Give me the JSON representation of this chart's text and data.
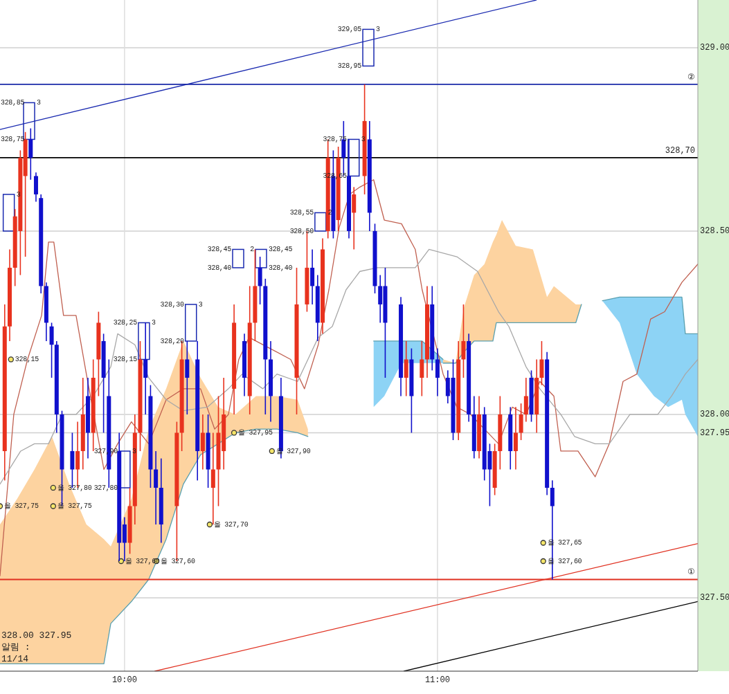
{
  "chart_data": {
    "type": "candlestick",
    "xlim": [
      9.602,
      11.832
    ],
    "ylim": [
      327.3,
      329.13
    ],
    "xticks": [
      {
        "value": 10,
        "label": "10:00"
      },
      {
        "value": 11,
        "label": "11:00"
      }
    ],
    "yticks": [
      {
        "value": 327.5,
        "label": "327.50"
      },
      {
        "value": 327.95,
        "label": "327.95"
      },
      {
        "value": 328,
        "label": "328.00"
      },
      {
        "value": 328.5,
        "label": "328.50"
      },
      {
        "value": 329,
        "label": "329.00"
      }
    ],
    "grid": true,
    "series": [
      {
        "type": "line",
        "color": "#5aa0b0",
        "x": [
          9.602,
          9.657,
          9.712,
          9.768,
          9.823,
          9.878,
          9.934,
          9.956,
          10.022,
          10.077,
          10.133,
          10.188,
          10.243,
          10.299,
          10.354,
          10.42,
          10.487,
          10.553,
          10.586
        ],
        "values": [
          327.32,
          327.32,
          327.32,
          327.32,
          327.32,
          327.32,
          327.32,
          327.43,
          327.49,
          327.55,
          327.66,
          327.81,
          327.89,
          327.92,
          327.95,
          327.96,
          327.96,
          327.95,
          327.94
        ],
        "lower": [
          327.32,
          327.32,
          327.32,
          327.32,
          327.32,
          327.32,
          327.32,
          327.43,
          327.49,
          327.55,
          327.66,
          327.81,
          327.89,
          327.92,
          327.95,
          327.96,
          327.96,
          327.95,
          327.94
        ],
        "upper": [
          327.7,
          327.77,
          327.85,
          327.94,
          327.81,
          327.7,
          327.66,
          327.64,
          327.77,
          327.96,
          328.07,
          328.2,
          328.1,
          328.02,
          328.0,
          328.05,
          328.05,
          328.04,
          327.96
        ]
      },
      {
        "type": "line",
        "color": "#5aa0b0",
        "x": [
          10.796,
          10.83,
          10.885,
          10.951,
          11.018
        ],
        "values": [
          328.2,
          328.2,
          328.2,
          328.2,
          328.15
        ],
        "lower": [
          328.02,
          328.05,
          328.14,
          328.14,
          328.14
        ],
        "upper": [
          328.2,
          328.2,
          328.2,
          328.2,
          328.15
        ]
      },
      {
        "type": "line",
        "color": "#5aa0b0",
        "x": [
          11.018,
          11.058,
          11.084,
          11.117,
          11.15,
          11.177,
          11.188,
          11.206,
          11.25,
          11.305,
          11.35,
          11.372,
          11.442,
          11.46
        ],
        "values": [
          328.14,
          328.14,
          328.17,
          328.2,
          328.2,
          328.2,
          328.25,
          328.25,
          328.25,
          328.25,
          328.25,
          328.25,
          328.25,
          328.3
        ],
        "lower": [
          328.14,
          328.14,
          328.17,
          328.2,
          328.2,
          328.2,
          328.25,
          328.25,
          328.25,
          328.25,
          328.25,
          328.25,
          328.25,
          328.3
        ],
        "upper": [
          328.15,
          328.14,
          328.29,
          328.38,
          328.41,
          328.47,
          328.49,
          328.53,
          328.46,
          328.45,
          328.32,
          328.35,
          328.3,
          328.3
        ]
      },
      {
        "type": "line",
        "color": "#5aa0b0",
        "x": [
          11.527,
          11.582,
          11.637,
          11.692,
          11.737,
          11.781,
          11.792,
          11.832
        ],
        "values": [
          328.31,
          328.32,
          328.32,
          328.32,
          328.32,
          328.32,
          328.22,
          328.22
        ],
        "lower": [
          328.31,
          328.25,
          328.11,
          328.05,
          328.02,
          328.04,
          328.0,
          327.94
        ],
        "upper": [
          328.31,
          328.32,
          328.32,
          328.32,
          328.32,
          328.32,
          328.22,
          328.22
        ]
      },
      {
        "type": "line",
        "color": "#c06050",
        "x": [
          9.602,
          9.646,
          9.69,
          9.735,
          9.757,
          9.774,
          9.805,
          9.845,
          9.878,
          9.934,
          9.978,
          10.022,
          10.077,
          10.133,
          10.188,
          10.243,
          10.288,
          10.332,
          10.365,
          10.398,
          10.465,
          10.531,
          10.575,
          10.619,
          10.653,
          10.686,
          10.719,
          10.752,
          10.796,
          10.83,
          10.885,
          10.929,
          10.951,
          11.018,
          11.062,
          11.106,
          11.15,
          11.195,
          11.239,
          11.283,
          11.327,
          11.372,
          11.394,
          11.449,
          11.504,
          11.549,
          11.593,
          11.637,
          11.681,
          11.726,
          11.781,
          11.832
        ],
        "values": [
          327.56,
          328.0,
          328.15,
          328.27,
          328.47,
          328.47,
          328.27,
          328.27,
          328.11,
          327.85,
          327.92,
          327.98,
          327.92,
          328.04,
          328.07,
          328.07,
          327.96,
          328.0,
          328.15,
          328.21,
          328.18,
          328.15,
          328.07,
          328.19,
          328.34,
          328.51,
          328.6,
          328.62,
          328.64,
          328.53,
          328.52,
          328.45,
          328.34,
          328.11,
          328.02,
          328.0,
          327.96,
          327.92,
          328.02,
          328.0,
          328.09,
          328.05,
          327.9,
          327.9,
          327.83,
          327.92,
          328.09,
          328.11,
          328.26,
          328.28,
          328.36,
          328.41
        ]
      },
      {
        "type": "line",
        "color": "#a8a8a8",
        "x": [
          9.602,
          9.668,
          9.712,
          9.757,
          9.801,
          9.845,
          9.9,
          9.956,
          9.978,
          10.033,
          10.077,
          10.133,
          10.188,
          10.265,
          10.332,
          10.376,
          10.442,
          10.487,
          10.553,
          10.619,
          10.664,
          10.708,
          10.752,
          10.808,
          10.929,
          10.973,
          11.062,
          11.128,
          11.195,
          11.228,
          11.283,
          11.327,
          11.394,
          11.438,
          11.504,
          11.549,
          11.615,
          11.704,
          11.748,
          11.792,
          11.832
        ],
        "values": [
          327.81,
          327.9,
          327.92,
          327.92,
          328.0,
          328.0,
          328.05,
          328.13,
          328.22,
          328.19,
          328.1,
          328.04,
          328.01,
          328.02,
          328.07,
          328.11,
          328.07,
          328.11,
          328.09,
          328.21,
          328.24,
          328.34,
          328.39,
          328.4,
          328.4,
          328.45,
          328.43,
          328.39,
          328.28,
          328.24,
          328.13,
          328.07,
          328.0,
          327.94,
          327.92,
          327.92,
          328.0,
          328.0,
          328.05,
          328.11,
          328.15
        ]
      },
      {
        "type": "line",
        "color": "#1a2ab0",
        "x": [
          9.602,
          11.316
        ],
        "values": [
          328.777,
          329.13
        ]
      },
      {
        "type": "line",
        "color": "#e03020",
        "x": [
          10.097,
          11.832
        ],
        "values": [
          327.3,
          327.648
        ]
      },
      {
        "type": "line",
        "color": "#000000",
        "x": [
          10.893,
          11.832
        ],
        "values": [
          327.3,
          327.49
        ]
      },
      {
        "type": "bar",
        "color": "#1a2ab0",
        "x": [
          9.63,
          9.695,
          10.0,
          10.062,
          10.212,
          10.363,
          10.436,
          10.626,
          10.732,
          10.779
        ],
        "base": [
          328.5,
          328.75,
          327.8,
          328.15,
          328.2,
          328.4,
          328.4,
          328.5,
          328.65,
          328.95
        ],
        "values": [
          0.1,
          0.1,
          0.1,
          0.1,
          0.1,
          0.05,
          0.05,
          0.05,
          0.1,
          0.1
        ]
      },
      {
        "type": "scatter",
        "color": "#f5e66a",
        "marker": "circle",
        "x": [
          9.602,
          9.637,
          9.772,
          9.772,
          9.989,
          10.102,
          10.272,
          10.35,
          10.471,
          11.338,
          11.338
        ],
        "values": [
          327.75,
          328.15,
          327.8,
          327.75,
          327.6,
          327.6,
          327.7,
          327.95,
          327.9,
          327.65,
          327.6
        ]
      },
      {
        "color": "#e8321e",
        "x": [
          9.617,
          9.633,
          9.65,
          9.667,
          9.683,
          9.85,
          9.867,
          9.9,
          9.917,
          10.017,
          10.033,
          10.05,
          10.167,
          10.183,
          10.25,
          10.283,
          10.3,
          10.317,
          10.35,
          10.4,
          10.417,
          10.55,
          10.583,
          10.633,
          10.65,
          10.683,
          10.733,
          10.767,
          10.9,
          10.95,
          10.967,
          11.067,
          11.083,
          11.133,
          11.183,
          11.2,
          11.25,
          11.267,
          11.283,
          11.317,
          11.333
        ],
        "ohlc": [
          [
            327.9,
            328.3,
            327.82,
            328.24
          ],
          [
            328.24,
            328.45,
            328.2,
            328.4
          ],
          [
            328.4,
            328.56,
            328.35,
            328.54
          ],
          [
            328.5,
            328.72,
            328.38,
            328.7
          ],
          [
            328.65,
            328.77,
            328.43,
            328.75
          ],
          [
            327.85,
            327.98,
            327.8,
            327.9
          ],
          [
            327.9,
            328.1,
            327.85,
            328.0
          ],
          [
            327.95,
            328.15,
            327.9,
            328.1
          ],
          [
            328.15,
            328.28,
            328.05,
            328.25
          ],
          [
            327.65,
            327.8,
            327.62,
            327.75
          ],
          [
            327.75,
            328.0,
            327.7,
            327.95
          ],
          [
            327.95,
            328.2,
            327.9,
            328.15
          ],
          [
            327.75,
            327.98,
            327.6,
            327.95
          ],
          [
            327.95,
            328.2,
            327.9,
            328.15
          ],
          [
            327.9,
            328.0,
            327.85,
            327.95
          ],
          [
            327.8,
            327.95,
            327.7,
            327.85
          ],
          [
            327.85,
            328.05,
            327.75,
            327.95
          ],
          [
            327.9,
            328.1,
            327.85,
            328.0
          ],
          [
            328.07,
            328.3,
            328.0,
            328.25
          ],
          [
            328.05,
            328.35,
            328.0,
            328.25
          ],
          [
            328.25,
            328.45,
            328.2,
            328.35
          ],
          [
            328.1,
            328.4,
            328.0,
            328.3
          ],
          [
            328.3,
            328.5,
            328.28,
            328.4
          ],
          [
            328.25,
            328.48,
            328.22,
            328.45
          ],
          [
            328.5,
            328.75,
            328.48,
            328.7
          ],
          [
            328.53,
            328.73,
            328.5,
            328.7
          ],
          [
            328.55,
            328.62,
            328.45,
            328.6
          ],
          [
            328.65,
            328.9,
            328.6,
            328.8
          ],
          [
            328.1,
            328.2,
            328.05,
            328.15
          ],
          [
            328.1,
            328.2,
            328.05,
            328.15
          ],
          [
            328.15,
            328.35,
            328.1,
            328.3
          ],
          [
            327.95,
            328.2,
            327.93,
            328.15
          ],
          [
            328.15,
            328.3,
            328.1,
            328.2
          ],
          [
            327.9,
            328.05,
            327.88,
            328.0
          ],
          [
            327.8,
            327.92,
            327.78,
            327.9
          ],
          [
            327.9,
            328.05,
            327.85,
            328.0
          ],
          [
            327.9,
            328.02,
            327.85,
            327.95
          ],
          [
            327.95,
            328.03,
            327.93,
            328.0
          ],
          [
            328.0,
            328.1,
            327.98,
            328.05
          ],
          [
            328.0,
            328.15,
            327.95,
            328.1
          ],
          [
            328.1,
            328.2,
            328.08,
            328.15
          ]
        ]
      },
      {
        "color": "#1010cc",
        "x": [
          9.7,
          9.717,
          9.733,
          9.75,
          9.767,
          9.783,
          9.8,
          9.833,
          9.883,
          9.933,
          9.95,
          9.983,
          10.0,
          10.067,
          10.083,
          10.1,
          10.117,
          10.2,
          10.233,
          10.267,
          10.383,
          10.433,
          10.45,
          10.467,
          10.5,
          10.6,
          10.617,
          10.667,
          10.7,
          10.717,
          10.783,
          10.8,
          10.817,
          10.833,
          10.883,
          10.917,
          10.983,
          11.0,
          11.033,
          11.05,
          11.1,
          11.117,
          11.15,
          11.167,
          11.233,
          11.3,
          11.35,
          11.367
        ],
        "ohlc": [
          [
            328.75,
            328.78,
            328.64,
            328.7
          ],
          [
            328.65,
            328.66,
            328.58,
            328.6
          ],
          [
            328.59,
            328.6,
            328.33,
            328.35
          ],
          [
            328.35,
            328.36,
            328.2,
            328.25
          ],
          [
            328.24,
            328.25,
            328.1,
            328.19
          ],
          [
            328.19,
            328.2,
            327.95,
            328.0
          ],
          [
            328.0,
            328.01,
            327.75,
            327.85
          ],
          [
            327.9,
            327.95,
            327.8,
            327.85
          ],
          [
            328.05,
            328.1,
            327.88,
            327.95
          ],
          [
            328.2,
            328.22,
            327.95,
            328.1
          ],
          [
            328.05,
            328.15,
            327.8,
            327.85
          ],
          [
            327.9,
            327.95,
            327.6,
            327.65
          ],
          [
            327.7,
            327.72,
            327.6,
            327.65
          ],
          [
            328.15,
            328.25,
            328.0,
            328.1
          ],
          [
            328.05,
            328.08,
            327.8,
            327.85
          ],
          [
            327.85,
            327.9,
            327.7,
            327.8
          ],
          [
            327.8,
            327.88,
            327.65,
            327.7
          ],
          [
            328.15,
            328.2,
            328.0,
            328.1
          ],
          [
            328.15,
            328.2,
            327.82,
            327.9
          ],
          [
            327.95,
            328.0,
            327.8,
            327.85
          ],
          [
            328.2,
            328.22,
            328.05,
            328.1
          ],
          [
            328.4,
            328.43,
            328.3,
            328.35
          ],
          [
            328.35,
            328.37,
            328.0,
            328.15
          ],
          [
            328.15,
            328.2,
            327.98,
            328.05
          ],
          [
            328.05,
            328.1,
            327.88,
            327.9
          ],
          [
            328.4,
            328.45,
            328.3,
            328.35
          ],
          [
            328.35,
            328.38,
            328.2,
            328.25
          ],
          [
            328.65,
            328.72,
            328.48,
            328.5
          ],
          [
            328.75,
            328.8,
            328.65,
            328.7
          ],
          [
            328.65,
            328.75,
            328.48,
            328.5
          ],
          [
            328.75,
            328.8,
            328.5,
            328.55
          ],
          [
            328.5,
            328.52,
            328.33,
            328.35
          ],
          [
            328.35,
            328.38,
            328.25,
            328.3
          ],
          [
            328.35,
            328.4,
            328.1,
            328.25
          ],
          [
            328.3,
            328.32,
            328.05,
            328.1
          ],
          [
            328.15,
            328.18,
            327.95,
            328.05
          ],
          [
            328.3,
            328.35,
            328.12,
            328.15
          ],
          [
            328.15,
            328.18,
            328.05,
            328.1
          ],
          [
            328.1,
            328.12,
            328.03,
            328.05
          ],
          [
            328.1,
            328.15,
            327.93,
            327.95
          ],
          [
            328.2,
            328.22,
            327.98,
            328.0
          ],
          [
            328.0,
            328.05,
            327.88,
            327.9
          ],
          [
            328.0,
            328.02,
            327.82,
            327.85
          ],
          [
            327.9,
            327.92,
            327.75,
            327.85
          ],
          [
            328.0,
            328.02,
            327.85,
            327.9
          ],
          [
            328.1,
            328.12,
            327.98,
            328.0
          ],
          [
            328.15,
            328.17,
            327.78,
            327.8
          ],
          [
            327.8,
            327.82,
            327.55,
            327.75
          ]
        ]
      }
    ],
    "ref_lines": [
      {
        "axis": "y",
        "value": 328.9,
        "label": "②",
        "color": "#1a2aa8"
      },
      {
        "axis": "y",
        "value": 328.7,
        "label": "328,70",
        "color": "#000000"
      },
      {
        "axis": "y",
        "value": 327.55,
        "label": "①",
        "color": "#e03020"
      }
    ],
    "annotations": [
      {
        "text": "329,05",
        "x": 10.779,
        "y": 329.05
      },
      {
        "text": "3",
        "x": 10.779,
        "y": 329.05
      },
      {
        "text": "328,95",
        "x": 10.779,
        "y": 328.95
      },
      {
        "text": "328,85",
        "x": 9.695,
        "y": 328.85
      },
      {
        "text": "3",
        "x": 9.695,
        "y": 328.85
      },
      {
        "text": "328,75",
        "x": 9.695,
        "y": 328.75
      },
      {
        "text": "3",
        "x": 9.63,
        "y": 328.6
      },
      {
        "text": "328,25",
        "x": 10.062,
        "y": 328.25
      },
      {
        "text": "3",
        "x": 10.062,
        "y": 328.25
      },
      {
        "text": "328,15",
        "x": 10.062,
        "y": 328.15
      },
      {
        "text": "328,30",
        "x": 10.212,
        "y": 328.3
      },
      {
        "text": "3",
        "x": 10.212,
        "y": 328.3
      },
      {
        "text": "328,20",
        "x": 10.212,
        "y": 328.2
      },
      {
        "text": "328,45",
        "x": 10.363,
        "y": 328.45
      },
      {
        "text": "328,40",
        "x": 10.363,
        "y": 328.4
      },
      {
        "text": "328,45",
        "x": 10.436,
        "y": 328.45
      },
      {
        "text": "2",
        "x": 10.436,
        "y": 328.45
      },
      {
        "text": "328,40",
        "x": 10.436,
        "y": 328.4
      },
      {
        "text": "328,55",
        "x": 10.626,
        "y": 328.55
      },
      {
        "text": "2",
        "x": 10.626,
        "y": 328.55
      },
      {
        "text": "328,50",
        "x": 10.626,
        "y": 328.5
      },
      {
        "text": "328,75",
        "x": 10.732,
        "y": 328.75
      },
      {
        "text": "3",
        "x": 10.732,
        "y": 328.75
      },
      {
        "text": "328,65",
        "x": 10.732,
        "y": 328.65
      },
      {
        "text": "327,90",
        "x": 10.0,
        "y": 327.9
      },
      {
        "text": "3",
        "x": 10.0,
        "y": 327.9
      },
      {
        "text": "327,80",
        "x": 10.0,
        "y": 327.8
      },
      {
        "text": "올 327,75",
        "x": 9.602,
        "y": 327.75
      },
      {
        "text": "328,15",
        "x": 9.637,
        "y": 328.15
      },
      {
        "text": "올 327,80",
        "x": 9.772,
        "y": 327.8
      },
      {
        "text": "올 327,75",
        "x": 9.772,
        "y": 327.75
      },
      {
        "text": "올 327,60",
        "x": 9.989,
        "y": 327.6
      },
      {
        "text": "올 327,60",
        "x": 10.102,
        "y": 327.6
      },
      {
        "text": "올 327,70",
        "x": 10.272,
        "y": 327.7
      },
      {
        "text": "올 327,95",
        "x": 10.35,
        "y": 327.95
      },
      {
        "text": "올 327,90",
        "x": 10.471,
        "y": 327.9
      },
      {
        "text": "올 327,65",
        "x": 11.338,
        "y": 327.65
      },
      {
        "text": "올 327,60",
        "x": 11.338,
        "y": 327.6
      },
      "328.00  327.95",
      "알림 :",
      "11/14"
    ]
  }
}
